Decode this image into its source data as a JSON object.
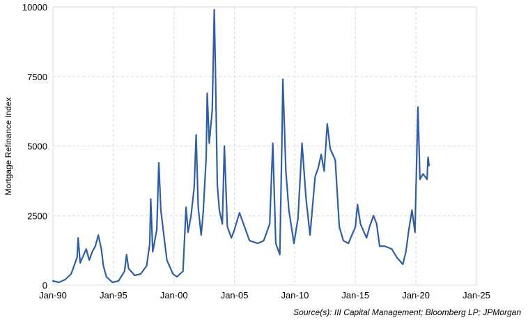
{
  "chart_data": {
    "type": "line",
    "title": "",
    "xlabel": "",
    "ylabel": "Mortgage Refinance Index",
    "source": "Source(s): III Capital Management; Bloomberg LP; JPMorgan",
    "xlim": [
      "1990-01",
      "2025-01"
    ],
    "ylim": [
      0,
      10000
    ],
    "x_ticks": [
      "Jan-90",
      "Jan-95",
      "Jan-00",
      "Jan-05",
      "Jan-10",
      "Jan-15",
      "Jan-20",
      "Jan-25"
    ],
    "x_tick_dates": [
      "1990-01",
      "1995-01",
      "2000-01",
      "2005-01",
      "2010-01",
      "2015-01",
      "2020-01",
      "2025-01"
    ],
    "y_ticks": [
      0,
      2500,
      5000,
      7500,
      10000
    ],
    "y_tick_labels": [
      "0",
      "2500",
      "5000",
      "7500",
      "10000"
    ],
    "grid": true,
    "legend": "none",
    "line_color": "#2e5fa3",
    "series": [
      {
        "name": "",
        "points": [
          [
            "1990-01",
            150
          ],
          [
            "1990-07",
            100
          ],
          [
            "1991-01",
            200
          ],
          [
            "1991-07",
            400
          ],
          [
            "1992-01",
            1000
          ],
          [
            "1992-02",
            1700
          ],
          [
            "1992-04",
            800
          ],
          [
            "1992-10",
            1300
          ],
          [
            "1993-01",
            900
          ],
          [
            "1993-04",
            1200
          ],
          [
            "1993-07",
            1400
          ],
          [
            "1993-10",
            1800
          ],
          [
            "1994-01",
            1300
          ],
          [
            "1994-03",
            700
          ],
          [
            "1994-06",
            300
          ],
          [
            "1994-12",
            100
          ],
          [
            "1995-06",
            150
          ],
          [
            "1995-12",
            500
          ],
          [
            "1996-02",
            1100
          ],
          [
            "1996-04",
            600
          ],
          [
            "1996-10",
            350
          ],
          [
            "1997-04",
            400
          ],
          [
            "1997-10",
            700
          ],
          [
            "1998-01",
            1500
          ],
          [
            "1998-02",
            3100
          ],
          [
            "1998-04",
            1200
          ],
          [
            "1998-08",
            2000
          ],
          [
            "1998-10",
            4400
          ],
          [
            "1998-12",
            2700
          ],
          [
            "1999-03",
            1800
          ],
          [
            "1999-06",
            900
          ],
          [
            "1999-12",
            400
          ],
          [
            "2000-04",
            300
          ],
          [
            "2000-10",
            500
          ],
          [
            "2001-01",
            2800
          ],
          [
            "2001-03",
            1900
          ],
          [
            "2001-06",
            2500
          ],
          [
            "2001-09",
            3500
          ],
          [
            "2001-11",
            5400
          ],
          [
            "2002-01",
            2800
          ],
          [
            "2002-04",
            1800
          ],
          [
            "2002-06",
            2600
          ],
          [
            "2002-09",
            4600
          ],
          [
            "2002-10",
            6900
          ],
          [
            "2002-12",
            5100
          ],
          [
            "2003-03",
            6300
          ],
          [
            "2003-05",
            9900
          ],
          [
            "2003-06",
            8000
          ],
          [
            "2003-08",
            3600
          ],
          [
            "2003-10",
            2700
          ],
          [
            "2004-01",
            2200
          ],
          [
            "2004-03",
            5000
          ],
          [
            "2004-06",
            2100
          ],
          [
            "2004-10",
            1700
          ],
          [
            "2005-01",
            2000
          ],
          [
            "2005-06",
            2600
          ],
          [
            "2005-12",
            2000
          ],
          [
            "2006-04",
            1600
          ],
          [
            "2006-12",
            1500
          ],
          [
            "2007-06",
            1600
          ],
          [
            "2007-12",
            2200
          ],
          [
            "2008-01",
            3200
          ],
          [
            "2008-03",
            5100
          ],
          [
            "2008-06",
            1500
          ],
          [
            "2008-10",
            1100
          ],
          [
            "2008-12",
            5000
          ],
          [
            "2009-01",
            7400
          ],
          [
            "2009-04",
            4100
          ],
          [
            "2009-07",
            2700
          ],
          [
            "2009-12",
            1500
          ],
          [
            "2010-04",
            2400
          ],
          [
            "2010-08",
            5100
          ],
          [
            "2010-12",
            3100
          ],
          [
            "2011-04",
            1800
          ],
          [
            "2011-09",
            3900
          ],
          [
            "2011-12",
            4200
          ],
          [
            "2012-03",
            4700
          ],
          [
            "2012-06",
            4100
          ],
          [
            "2012-09",
            5800
          ],
          [
            "2012-12",
            4900
          ],
          [
            "2013-05",
            4500
          ],
          [
            "2013-09",
            2100
          ],
          [
            "2014-01",
            1600
          ],
          [
            "2014-06",
            1500
          ],
          [
            "2015-01",
            2100
          ],
          [
            "2015-03",
            2900
          ],
          [
            "2015-06",
            2200
          ],
          [
            "2015-12",
            1700
          ],
          [
            "2016-03",
            2100
          ],
          [
            "2016-07",
            2500
          ],
          [
            "2016-10",
            2200
          ],
          [
            "2017-01",
            1400
          ],
          [
            "2017-06",
            1400
          ],
          [
            "2018-01",
            1300
          ],
          [
            "2018-06",
            1000
          ],
          [
            "2018-12",
            750
          ],
          [
            "2019-03",
            1200
          ],
          [
            "2019-06",
            2000
          ],
          [
            "2019-09",
            2700
          ],
          [
            "2019-12",
            1900
          ],
          [
            "2020-03",
            6400
          ],
          [
            "2020-05",
            3800
          ],
          [
            "2020-08",
            4000
          ],
          [
            "2020-12",
            3800
          ],
          [
            "2021-01",
            4600
          ],
          [
            "2021-02",
            4300
          ]
        ]
      }
    ]
  }
}
